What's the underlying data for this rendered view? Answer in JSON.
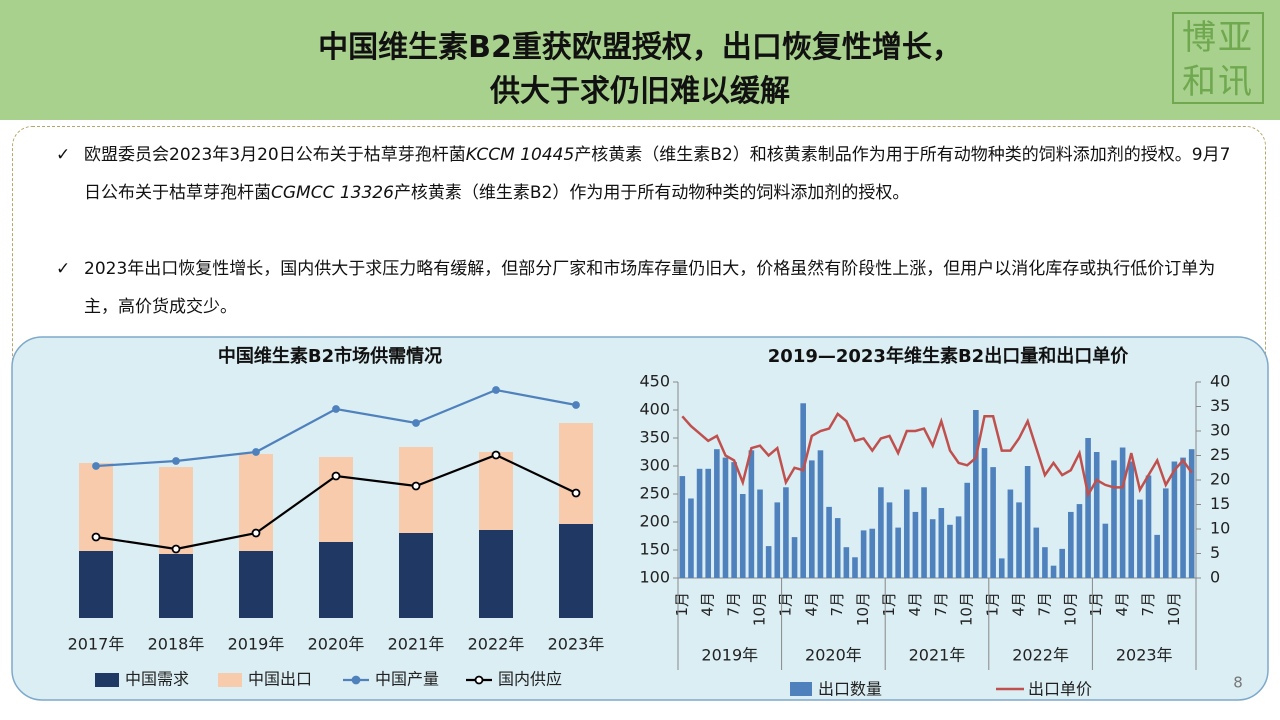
{
  "header": {
    "title_lines": [
      "中国维生素B2重获欧盟授权，出口恢复性增长，",
      "供大于求仍旧难以缓解"
    ],
    "logo": "博亚和讯"
  },
  "bullets": [
    [
      "欧盟委员会2023年3月20日公布关于枯草芽孢杆菌",
      "KCCM 10445",
      "产核黄素（维生素B2）和核黄素制品作为用于所有动物种类的饲料添加剂的授权。9月7日公布关于枯草芽孢杆菌",
      "CGMCC 13326",
      "产核黄素（维生素B2）作为用于所有动物种类的饲料添加剂的授权。"
    ],
    [
      "2023年出口恢复性增长，国内供大于求压力略有缓解，但部分厂家和市场库存量仍旧大，价格虽然有阶段性上涨，但用户以消化库存或执行低价订单为主，高价货成交少。"
    ]
  ],
  "page_number": "8",
  "chart_data": [
    {
      "type": "bar",
      "title": "中国维生素B2市场供需情况",
      "stacked": true,
      "categories": [
        "2017年",
        "2018年",
        "2019年",
        "2020年",
        "2021年",
        "2022年",
        "2023年"
      ],
      "ylim": [
        0,
        240
      ],
      "series": [
        {
          "name": "中国需求",
          "type": "bar",
          "color": "#1f3864",
          "values": [
            67,
            64,
            67,
            76,
            85,
            88,
            94
          ]
        },
        {
          "name": "中国出口",
          "type": "bar",
          "color": "#f8cbad",
          "values": [
            88,
            87,
            97,
            85,
            86,
            78,
            101
          ]
        },
        {
          "name": "中国产量",
          "type": "line",
          "color": "#4f81bd",
          "marker_fill": "#4f81bd",
          "values": [
            152,
            157,
            166,
            209,
            195,
            228,
            213
          ]
        },
        {
          "name": "国内供应",
          "type": "line",
          "color": "#000000",
          "marker_fill": "#ffffff",
          "values": [
            81,
            69,
            85,
            142,
            132,
            163,
            125
          ]
        }
      ]
    },
    {
      "type": "bar",
      "title": "2019—2023年维生素B2出口量和出口单价",
      "categories": [
        "1月",
        null,
        null,
        "4月",
        null,
        null,
        "7月",
        null,
        null,
        "10月",
        null,
        null,
        "1月",
        null,
        null,
        "4月",
        null,
        null,
        "7月",
        null,
        null,
        "10月",
        null,
        null,
        "1月",
        null,
        null,
        "4月",
        null,
        null,
        "7月",
        null,
        null,
        "10月",
        null,
        null,
        "1月",
        null,
        null,
        "4月",
        null,
        null,
        "7月",
        null,
        null,
        "10月",
        null,
        null,
        "1月",
        null,
        null,
        "4月",
        null,
        null,
        "7月",
        null,
        null,
        "10月",
        null,
        null
      ],
      "groups": [
        "2019年",
        "2020年",
        "2021年",
        "2022年",
        "2023年"
      ],
      "ylim": [
        100,
        450
      ],
      "yticks": [
        100,
        150,
        200,
        250,
        300,
        350,
        400,
        450
      ],
      "y2lim": [
        0,
        40
      ],
      "y2ticks": [
        0,
        5,
        10,
        15,
        20,
        25,
        30,
        35,
        40
      ],
      "series": [
        {
          "name": "出口数量",
          "type": "bar",
          "color": "#4f81bd",
          "values": [
            282,
            242,
            295,
            295,
            330,
            315,
            307,
            250,
            328,
            258,
            157,
            235,
            262,
            173,
            412,
            310,
            328,
            227,
            207,
            155,
            137,
            185,
            188,
            262,
            235,
            190,
            258,
            218,
            262,
            205,
            225,
            195,
            210,
            270,
            400,
            332,
            298,
            135,
            258,
            235,
            300,
            190,
            155,
            122,
            152,
            218,
            232,
            350,
            325,
            197,
            310,
            333,
            308,
            240,
            283,
            177,
            260,
            308,
            315,
            330
          ]
        },
        {
          "name": "出口单价",
          "type": "line",
          "axis": "y2",
          "color": "#c0504d",
          "values": [
            33,
            31,
            29.5,
            28,
            29,
            25,
            24,
            19.5,
            26.5,
            27,
            25,
            26.5,
            19.5,
            22.5,
            22,
            29,
            30,
            30.5,
            33.5,
            32,
            28,
            28.5,
            26,
            28.5,
            29,
            25.5,
            30,
            30,
            30.5,
            27,
            32,
            26,
            23.5,
            23,
            24.5,
            33,
            33,
            26,
            26,
            28.5,
            32,
            26.5,
            21,
            23.5,
            21,
            22,
            25.5,
            17,
            20,
            19,
            18.5,
            18.5,
            25.5,
            18,
            21,
            24,
            19,
            22,
            24,
            21.5
          ]
        }
      ]
    }
  ]
}
